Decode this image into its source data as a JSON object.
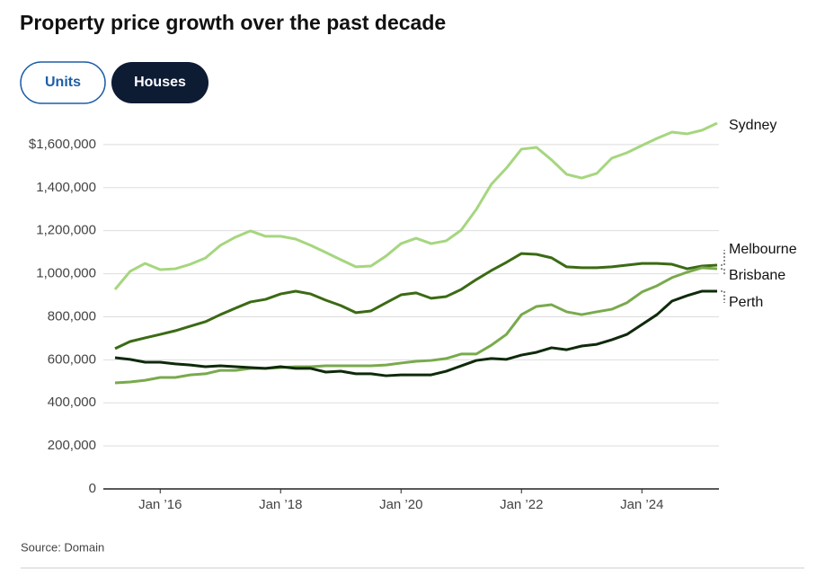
{
  "title": "Property price growth over the past decade",
  "buttons": [
    "Units",
    "Houses"
  ],
  "source": "Source: Domain",
  "chart_data": {
    "type": "line",
    "categories": [
      null,
      null,
      null,
      "Jan ’16",
      null,
      null,
      null,
      null,
      null,
      null,
      null,
      "Jan ’18",
      null,
      null,
      null,
      null,
      null,
      null,
      null,
      "Jan ’20",
      null,
      null,
      null,
      null,
      null,
      null,
      null,
      "Jan ’22",
      null,
      null,
      null,
      null,
      null,
      null,
      null,
      "Jan ’24",
      null,
      null,
      null,
      null,
      null
    ],
    "series": [
      {
        "name": "Sydney",
        "color": "#a6d67f",
        "values": [
          927000,
          1011000,
          1048000,
          1019000,
          1023000,
          1044000,
          1073000,
          1132000,
          1170000,
          1199000,
          1174000,
          1174000,
          1161000,
          1132000,
          1099000,
          1065000,
          1032000,
          1036000,
          1082000,
          1140000,
          1165000,
          1140000,
          1153000,
          1203000,
          1299000,
          1416000,
          1491000,
          1579000,
          1587000,
          1529000,
          1462000,
          1445000,
          1466000,
          1537000,
          1562000,
          1596000,
          1629000,
          1658000,
          1650000,
          1667000,
          1700000
        ]
      },
      {
        "name": "Melbourne",
        "color": "#3b6a14",
        "values": [
          652000,
          685000,
          702000,
          718000,
          735000,
          756000,
          777000,
          810000,
          840000,
          869000,
          881000,
          906000,
          919000,
          906000,
          877000,
          852000,
          819000,
          827000,
          865000,
          902000,
          911000,
          886000,
          894000,
          927000,
          973000,
          1015000,
          1053000,
          1094000,
          1090000,
          1074000,
          1032000,
          1028000,
          1028000,
          1032000,
          1040000,
          1048000,
          1048000,
          1044000,
          1023000,
          1036000,
          1040000
        ]
      },
      {
        "name": "Brisbane",
        "color": "#79aa4c",
        "values": [
          493000,
          497000,
          505000,
          518000,
          518000,
          530000,
          535000,
          551000,
          551000,
          560000,
          560000,
          564000,
          568000,
          568000,
          572000,
          572000,
          572000,
          572000,
          576000,
          585000,
          593000,
          597000,
          606000,
          627000,
          627000,
          668000,
          718000,
          810000,
          848000,
          856000,
          823000,
          810000,
          823000,
          835000,
          865000,
          915000,
          944000,
          982000,
          1007000,
          1028000,
          1023000
        ]
      },
      {
        "name": "Perth",
        "color": "#0f2a0b",
        "values": [
          610000,
          602000,
          589000,
          589000,
          581000,
          576000,
          568000,
          572000,
          568000,
          564000,
          560000,
          568000,
          560000,
          560000,
          543000,
          547000,
          535000,
          535000,
          526000,
          530000,
          530000,
          530000,
          547000,
          572000,
          597000,
          606000,
          602000,
          622000,
          635000,
          656000,
          647000,
          664000,
          672000,
          693000,
          718000,
          764000,
          810000,
          873000,
          898000,
          919000,
          919000
        ]
      }
    ],
    "ylim": [
      0,
      1750000
    ],
    "yticks": [
      0,
      {
        "value": 200000,
        "label": "200,000"
      },
      {
        "value": 400000,
        "label": "400,000"
      },
      {
        "value": 600000,
        "label": "600,000"
      },
      {
        "value": 800000,
        "label": "800,000"
      },
      {
        "value": 1000000,
        "label": "1,000,000"
      },
      {
        "value": 1200000,
        "label": "1,200,000"
      },
      {
        "value": 1400000,
        "label": "1,400,000"
      },
      {
        "value": 1600000,
        "label": "$1,600,000"
      }
    ],
    "grid": true
  }
}
